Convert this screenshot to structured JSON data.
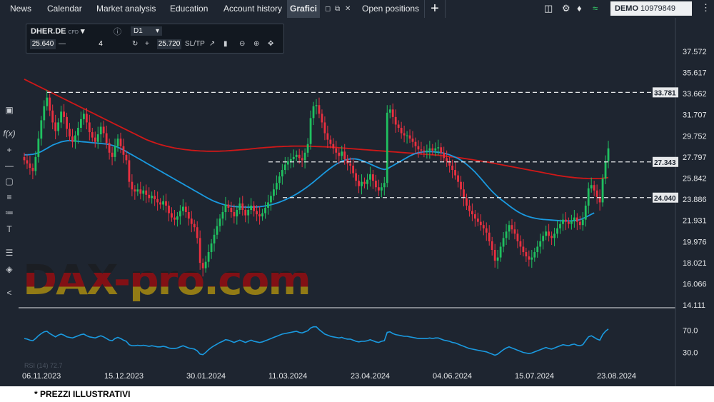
{
  "nav": {
    "tabs": [
      "News",
      "Calendar",
      "Market analysis",
      "Education",
      "Account history"
    ],
    "active_tab": "Grafici",
    "open_positions": "Open positions",
    "demo_label": "DEMO",
    "account": "10979849"
  },
  "toolbar": {
    "symbol": "DHER.DE",
    "symbol_type": "CFD",
    "timeframe": "D1",
    "bid": "25.640",
    "quantity": "4",
    "ask": "25.720",
    "sltp": "SL/TP"
  },
  "watermark": "DAX-pro.com",
  "footer_note": "* PREZZI ILLUSTRATIVI",
  "colors": {
    "up": "#20c060",
    "down": "#e83040",
    "ma200": "#d01818",
    "ma50": "#1a9ae0",
    "rsi": "#1a9ae0",
    "background": "#1e2530"
  },
  "icons": [
    "grid-icon",
    "settings-icon",
    "bell-icon",
    "wifi-icon",
    "menu-dots-icon",
    "screen-icon",
    "function-icon",
    "crosshair-icon",
    "line-tool-icon",
    "rectangle-icon",
    "fibonacci-icon",
    "text-tool-icon",
    "indicators-icon",
    "layers-icon",
    "share-icon"
  ],
  "chart_data": {
    "type": "candlestick",
    "symbol": "DHER.DE",
    "timeframe": "D1",
    "y_ticks": [
      "37.572",
      "35.617",
      "33.662",
      "31.707",
      "29.752",
      "27.797",
      "25.842",
      "23.886",
      "21.931",
      "19.976",
      "18.021",
      "16.066",
      "14.111"
    ],
    "x_ticks": [
      "06.11.2023",
      "15.12.2023",
      "30.01.2024",
      "11.03.2024",
      "23.04.2024",
      "04.06.2024",
      "15.07.2024",
      "23.08.2024"
    ],
    "ylim": [
      14.111,
      37.572
    ],
    "levels": [
      {
        "value": 33.781,
        "label": "33.781"
      },
      {
        "value": 27.343,
        "label": "27.343"
      },
      {
        "value": 24.04,
        "label": "24.040"
      }
    ],
    "close": [
      27.5,
      27.2,
      26.8,
      26.5,
      27.8,
      29.5,
      31.2,
      32.5,
      33.3,
      32.1,
      31.0,
      30.2,
      31.0,
      32.0,
      31.5,
      30.4,
      29.7,
      29.2,
      29.8,
      30.5,
      31.3,
      31.8,
      31.0,
      30.1,
      29.6,
      29.2,
      29.9,
      30.6,
      30.0,
      29.1,
      28.2,
      27.8,
      28.8,
      29.5,
      28.8,
      28.0,
      27.5,
      25.5,
      24.8,
      24.6,
      24.8,
      24.4,
      24.7,
      24.3,
      24.0,
      24.2,
      23.9,
      23.6,
      23.4,
      23.7,
      23.3,
      22.6,
      22.2,
      22.0,
      22.3,
      22.8,
      23.2,
      22.7,
      22.1,
      21.6,
      21.3,
      20.3,
      18.0,
      17.5,
      18.1,
      19.0,
      19.8,
      20.6,
      21.4,
      22.1,
      22.7,
      23.4,
      23.1,
      22.7,
      22.3,
      22.9,
      23.5,
      22.9,
      22.4,
      22.9,
      23.3,
      22.8,
      22.5,
      22.3,
      22.6,
      23.1,
      23.6,
      24.2,
      24.8,
      25.4,
      26.0,
      26.6,
      27.1,
      27.4,
      27.6,
      27.8,
      28.0,
      27.7,
      27.5,
      28.2,
      29.0,
      31.4,
      32.5,
      32.6,
      31.8,
      31.0,
      30.0,
      29.4,
      29.0,
      28.6,
      28.2,
      27.9,
      28.3,
      27.6,
      27.2,
      27.0,
      26.3,
      25.6,
      25.1,
      25.5,
      25.3,
      25.7,
      26.2,
      25.6,
      25.0,
      24.7,
      25.0,
      25.4,
      31.9,
      32.2,
      31.5,
      30.8,
      30.5,
      30.0,
      29.8,
      29.8,
      29.5,
      29.2,
      28.8,
      28.5,
      28.4,
      28.3,
      28.4,
      28.6,
      28.4,
      28.6,
      28.7,
      28.2,
      27.7,
      27.4,
      27.0,
      26.6,
      26.1,
      25.5,
      24.8,
      24.0,
      23.3,
      22.8,
      22.5,
      22.1,
      21.8,
      21.5,
      21.2,
      20.8,
      20.0,
      19.2,
      18.2,
      18.5,
      19.5,
      20.3,
      20.9,
      21.5,
      21.1,
      20.7,
      20.0,
      19.5,
      19.0,
      18.6,
      18.3,
      18.5,
      19.0,
      19.5,
      20.0,
      20.5,
      20.9,
      20.5,
      20.3,
      20.7,
      21.2,
      21.6,
      22.0,
      21.8,
      21.6,
      21.9,
      22.2,
      21.8,
      21.5,
      22.0,
      23.3,
      24.9,
      25.2,
      24.7,
      24.1,
      23.6,
      25.8,
      27.4,
      28.6
    ],
    "ma200": [
      35.0,
      34.87,
      34.74,
      34.61,
      34.48,
      34.35,
      34.22,
      34.09,
      33.96,
      33.83,
      33.7,
      33.57,
      33.44,
      33.31,
      33.18,
      33.05,
      32.92,
      32.79,
      32.66,
      32.53,
      32.4,
      32.27,
      32.14,
      32.01,
      31.88,
      31.75,
      31.62,
      31.49,
      31.36,
      31.23,
      31.1,
      30.97,
      30.84,
      30.71,
      30.58,
      30.45,
      30.32,
      30.19,
      30.06,
      29.93,
      29.8,
      29.67,
      29.54,
      29.42,
      29.31,
      29.21,
      29.12,
      29.03,
      28.95,
      28.88,
      28.81,
      28.75,
      28.69,
      28.64,
      28.59,
      28.55,
      28.51,
      28.48,
      28.45,
      28.42,
      28.4,
      28.38,
      28.36,
      28.35,
      28.34,
      28.33,
      28.33,
      28.33,
      28.33,
      28.34,
      28.35,
      28.36,
      28.38,
      28.4,
      28.42,
      28.44,
      28.46,
      28.48,
      28.5,
      28.52,
      28.55,
      28.58,
      28.61,
      28.63,
      28.65,
      28.67,
      28.69,
      28.71,
      28.73,
      28.75,
      28.76,
      28.77,
      28.78,
      28.79,
      28.8,
      28.81,
      28.81,
      28.81,
      28.81,
      28.8,
      28.8,
      28.79,
      28.78,
      28.77,
      28.76,
      28.75,
      28.74,
      28.73,
      28.72,
      28.7,
      28.68,
      28.66,
      28.64,
      28.62,
      28.6,
      28.58,
      28.56,
      28.54,
      28.52,
      28.5,
      28.48,
      28.46,
      28.44,
      28.42,
      28.4,
      28.38,
      28.36,
      28.34,
      28.32,
      28.3,
      28.28,
      28.26,
      28.24,
      28.22,
      28.2,
      28.18,
      28.16,
      28.14,
      28.12,
      28.1,
      28.08,
      28.06,
      28.04,
      28.02,
      28.0,
      27.98,
      27.96,
      27.93,
      27.9,
      27.87,
      27.84,
      27.81,
      27.78,
      27.75,
      27.71,
      27.67,
      27.63,
      27.59,
      27.55,
      27.51,
      27.47,
      27.43,
      27.39,
      27.35,
      27.3,
      27.25,
      27.2,
      27.15,
      27.1,
      27.05,
      27.0,
      26.95,
      26.9,
      26.85,
      26.8,
      26.75,
      26.7,
      26.65,
      26.6,
      26.55,
      26.5,
      26.45,
      26.4,
      26.35,
      26.3,
      26.25,
      26.2,
      26.15,
      26.1,
      26.06,
      26.02,
      25.98,
      25.95,
      25.92,
      25.89,
      25.87,
      25.85,
      25.83,
      25.82,
      25.81,
      25.8,
      25.8,
      25.8,
      25.81,
      25.83,
      25.86,
      25.9
    ],
    "ma50": [
      28.0,
      28.0,
      28.02,
      28.05,
      28.1,
      28.2,
      28.3,
      28.45,
      28.6,
      28.75,
      28.9,
      29.0,
      29.1,
      29.2,
      29.25,
      29.3,
      29.32,
      29.3,
      29.28,
      29.25,
      29.22,
      29.2,
      29.18,
      29.15,
      29.12,
      29.1,
      29.08,
      29.05,
      29.02,
      29.0,
      28.95,
      28.88,
      28.8,
      28.7,
      28.58,
      28.45,
      28.3,
      28.15,
      28.0,
      27.85,
      27.7,
      27.55,
      27.4,
      27.25,
      27.1,
      26.95,
      26.8,
      26.65,
      26.5,
      26.35,
      26.2,
      26.05,
      25.9,
      25.75,
      25.6,
      25.45,
      25.3,
      25.15,
      25.0,
      24.85,
      24.7,
      24.55,
      24.4,
      24.25,
      24.1,
      23.95,
      23.82,
      23.7,
      23.6,
      23.5,
      23.42,
      23.35,
      23.3,
      23.25,
      23.22,
      23.2,
      23.18,
      23.17,
      23.16,
      23.16,
      23.16,
      23.17,
      23.18,
      23.2,
      23.23,
      23.27,
      23.32,
      23.38,
      23.45,
      23.53,
      23.62,
      23.72,
      23.83,
      23.95,
      24.08,
      24.22,
      24.37,
      24.53,
      24.7,
      24.88,
      25.07,
      25.27,
      25.48,
      25.7,
      25.92,
      26.14,
      26.36,
      26.57,
      26.77,
      26.96,
      27.13,
      27.28,
      27.41,
      27.51,
      27.58,
      27.62,
      27.63,
      27.61,
      27.56,
      27.48,
      27.38,
      27.27,
      27.15,
      27.03,
      26.91,
      26.8,
      26.7,
      26.65,
      26.7,
      26.85,
      27.0,
      27.15,
      27.3,
      27.45,
      27.6,
      27.75,
      27.9,
      28.02,
      28.12,
      28.2,
      28.25,
      28.28,
      28.3,
      28.3,
      28.29,
      28.27,
      28.24,
      28.2,
      28.15,
      28.08,
      28.0,
      27.9,
      27.78,
      27.65,
      27.5,
      27.32,
      27.12,
      26.9,
      26.66,
      26.4,
      26.12,
      25.82,
      25.51,
      25.2,
      24.9,
      24.62,
      24.36,
      24.12,
      23.9,
      23.7,
      23.5,
      23.3,
      23.1,
      22.92,
      22.75,
      22.6,
      22.47,
      22.36,
      22.27,
      22.2,
      22.14,
      22.09,
      22.05,
      22.02,
      22.0,
      21.98,
      21.96,
      21.94,
      21.92,
      21.9,
      21.89,
      21.88,
      21.88,
      21.89,
      21.91,
      21.94,
      22.0,
      22.1,
      22.22,
      22.36,
      22.5,
      22.62
    ],
    "rsi": [
      55,
      54,
      52,
      51,
      55,
      60,
      64,
      67,
      68,
      64,
      61,
      58,
      61,
      63,
      61,
      58,
      57,
      56,
      58,
      60,
      62,
      63,
      60,
      58,
      57,
      56,
      58,
      60,
      58,
      55,
      52,
      51,
      55,
      57,
      55,
      52,
      50,
      44,
      42,
      42,
      43,
      42,
      43,
      42,
      41,
      42,
      41,
      40,
      40,
      41,
      40,
      38,
      37,
      37,
      38,
      40,
      42,
      40,
      38,
      37,
      36,
      33,
      27,
      26,
      30,
      35,
      39,
      42,
      45,
      48,
      50,
      53,
      52,
      50,
      48,
      50,
      52,
      50,
      48,
      50,
      52,
      50,
      49,
      48,
      49,
      51,
      53,
      55,
      57,
      59,
      61,
      63,
      64,
      65,
      66,
      67,
      68,
      66,
      65,
      67,
      69,
      74,
      76,
      76,
      71,
      67,
      63,
      61,
      59,
      58,
      57,
      56,
      57,
      55,
      54,
      54,
      52,
      50,
      49,
      50,
      50,
      51,
      53,
      51,
      49,
      48,
      50,
      51,
      66,
      67,
      64,
      62,
      61,
      60,
      59,
      59,
      58,
      57,
      56,
      55,
      55,
      55,
      55,
      56,
      55,
      56,
      56,
      54,
      52,
      51,
      50,
      48,
      47,
      45,
      43,
      41,
      39,
      37,
      36,
      35,
      34,
      33,
      32,
      31,
      29,
      27,
      25,
      27,
      31,
      35,
      38,
      40,
      38,
      36,
      34,
      32,
      30,
      29,
      28,
      29,
      31,
      33,
      35,
      37,
      39,
      37,
      36,
      38,
      40,
      42,
      44,
      43,
      42,
      44,
      45,
      43,
      42,
      44,
      51,
      58,
      60,
      57,
      54,
      52,
      62,
      68,
      72
    ],
    "rsi_label": "RSI (14) 72.7",
    "rsi_ticks": [
      "70.0",
      "30.0"
    ],
    "rsi_ylim": [
      0,
      100
    ]
  }
}
